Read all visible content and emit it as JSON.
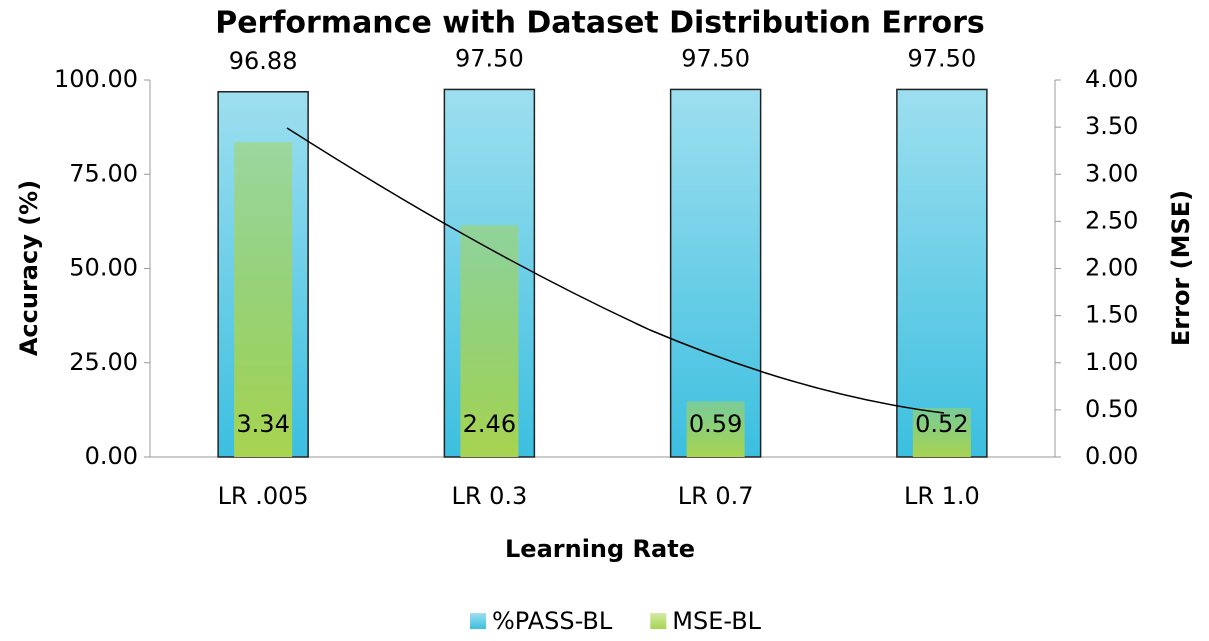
{
  "chart_data": {
    "type": "bar",
    "title": "Performance with Dataset Distribution Errors",
    "xlabel": "Learning Rate",
    "ylabel": "Accuracy (%)",
    "y2label": "Error (MSE)",
    "categories": [
      "LR .005",
      "LR 0.3",
      "LR 0.7",
      "LR 1.0"
    ],
    "series": [
      {
        "name": "%PASS-BL",
        "color": "#3cbfe0",
        "values": [
          96.88,
          97.5,
          97.5,
          97.5
        ],
        "value_labels": [
          "96.88",
          "97.50",
          "97.50",
          "97.50"
        ]
      },
      {
        "name": "MSE-BL",
        "color": "#a8d450",
        "axis": "y2",
        "values": [
          3.34,
          2.46,
          0.59,
          0.52
        ]
      }
    ],
    "ylim": [
      0,
      100
    ],
    "yticks": [
      {
        "value": 0,
        "label": "0.00"
      },
      {
        "value": 25,
        "label": "25.00"
      },
      {
        "value": 50,
        "label": "50.00"
      },
      {
        "value": 75,
        "label": "75.00"
      },
      {
        "value": 100,
        "label": "100.00"
      }
    ],
    "y2lim": [
      0,
      4
    ],
    "y2ticks": [
      {
        "value": 0,
        "label": "0.00"
      },
      {
        "value": 0.5,
        "label": "0.50"
      },
      {
        "value": 1,
        "label": "1.00"
      },
      {
        "value": 1.5,
        "label": "1.50"
      },
      {
        "value": 2,
        "label": "2.00"
      },
      {
        "value": 2.5,
        "label": "2.50"
      },
      {
        "value": 3,
        "label": "3.00"
      },
      {
        "value": 3.5,
        "label": "3.50"
      },
      {
        "value": 4,
        "label": "4.00"
      }
    ]
  }
}
